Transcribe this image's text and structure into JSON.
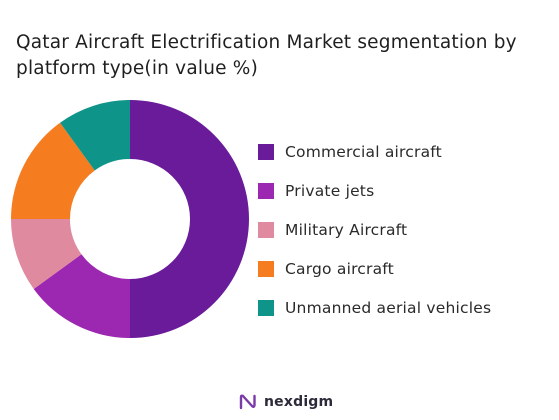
{
  "chart_data": {
    "type": "pie",
    "style": "donut",
    "title": "Qatar Aircraft Electrification Market segmentation by platform type(in value %)",
    "categories": [
      "Commercial aircraft",
      "Private jets",
      "Military Aircraft",
      "Cargo aircraft",
      "Unmanned aerial vehicles"
    ],
    "values": [
      50,
      15,
      10,
      15,
      10
    ],
    "colors": [
      "#6a1b9a",
      "#9c27b0",
      "#e08aa0",
      "#f57c1f",
      "#0e9488"
    ],
    "legend_position": "right"
  },
  "brand": {
    "name": "nexdigm"
  }
}
